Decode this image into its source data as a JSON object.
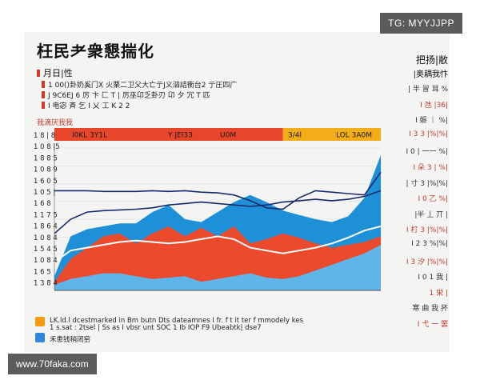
{
  "watermark_top": "TG: MYYJJPP",
  "watermark_bottom": "www.70faka.com",
  "header": {
    "title": "枉民耂衆懇揣化",
    "subtitle": "月日|性",
    "notes": [
      "1 00()卦奶奚门X 火栗二卫父大亡亍J义泅詰衝台2 亍圧四广",
      "J 9C6EJ 6 厉 卞 匚 T | 厉巫卬乏卦刃 卬 夕 冗 T 匹",
      "I 电宓 斉 乞 I 乂 工                    K 2 2"
    ],
    "red_label": "我滴厌我我"
  },
  "band": {
    "labels": [
      "I0KL  3Y1L",
      "Y JEI33",
      "U0M",
      "3/4l",
      "LOL 3A0M"
    ],
    "colors": [
      "#e8462a",
      "#f3ad18"
    ]
  },
  "right_panel": {
    "title": "把扬|敝",
    "subtitle": "|奥耦我忭",
    "rows": [
      "| 半 冒 耳 %",
      "I 氹 |36|",
      "I 娠 ｜ %|",
      "I 3 3 |%|%|",
      "I 0 | 一一 %|",
      "I 朵 3 | %|",
      "| 寸 3 |%|%|",
      "I 0 乙 %|",
      "|半 丄 丌 |",
      "I 朾 3 |%|%|",
      "I 2 3 %|%|",
      "I 3 汐 |%|%|",
      "I 0 1 我 |",
      "1 栄 |",
      "寒 曲 我 抔",
      "I 弋 一 罢"
    ]
  },
  "footer": {
    "lines": [
      "LK.ld.l dcestmarked in Bm butn Dts dateamnes I fr. f t it ter f  mmodely kes",
      "1 s.sat : 2tsel | Ss as I vbsr unt SOC 1 Ib IOP F9 Ubeabtk| dse7"
    ],
    "legend_label": "禾患钱稍闭窑"
  },
  "chart_data": {
    "type": "area",
    "title": "",
    "x_tick_labels": [
      "",
      "",
      "",
      "",
      "",
      "",
      ""
    ],
    "y_tick_labels": [
      "1 8 | 8",
      "1 0 8 |5",
      "1 8 8 5",
      "1 0 8 9",
      "1 6 0 5",
      "1 0 5 |",
      "1 6 8",
      "1 1 7 5",
      "1 8 6 4",
      "1 0 8 4",
      "1 5 4 5",
      "1 0 8 4",
      "1 6 5",
      "1 3 8 4"
    ],
    "x": [
      0,
      1,
      2,
      3,
      4,
      5,
      6,
      7,
      8,
      9,
      10,
      11,
      12,
      13,
      14,
      15,
      16,
      17,
      18,
      19,
      20
    ],
    "ylim": [
      0,
      100
    ],
    "series": [
      {
        "color": "#1e90d8",
        "values": [
          10,
          38,
          43,
          45,
          47,
          47,
          55,
          60,
          50,
          48,
          55,
          62,
          67,
          62,
          56,
          53,
          50,
          48,
          52,
          65,
          95
        ]
      },
      {
        "color": "#ec4a2c",
        "values": [
          6,
          22,
          30,
          38,
          40,
          33,
          40,
          45,
          38,
          44,
          38,
          45,
          33,
          36,
          40,
          37,
          33,
          30,
          32,
          34,
          38
        ]
      },
      {
        "color": "#5fb4e8",
        "values": [
          4,
          8,
          10,
          12,
          12,
          10,
          8,
          9,
          10,
          6,
          8,
          10,
          12,
          9,
          8,
          10,
          14,
          18,
          22,
          26,
          32
        ]
      }
    ],
    "lines": [
      {
        "color": "#1a2a6c",
        "values": [
          70,
          70,
          70,
          69.5,
          69.5,
          69.5,
          70,
          69.5,
          70,
          69,
          68.5,
          67,
          63,
          58,
          57,
          65,
          70,
          69,
          68,
          67,
          83
        ]
      },
      {
        "color": "#1a2a6c",
        "values": [
          40,
          50,
          55,
          56,
          56.5,
          57,
          58,
          60,
          61,
          62,
          61,
          60,
          59,
          60,
          62,
          63,
          64,
          63,
          64,
          66,
          70
        ]
      },
      {
        "color": "#ffffff",
        "values": [
          20,
          28,
          30,
          32,
          34,
          35,
          34,
          33,
          34,
          36,
          38,
          36,
          30,
          28,
          26,
          28,
          30,
          33,
          37,
          42,
          45
        ]
      }
    ]
  }
}
